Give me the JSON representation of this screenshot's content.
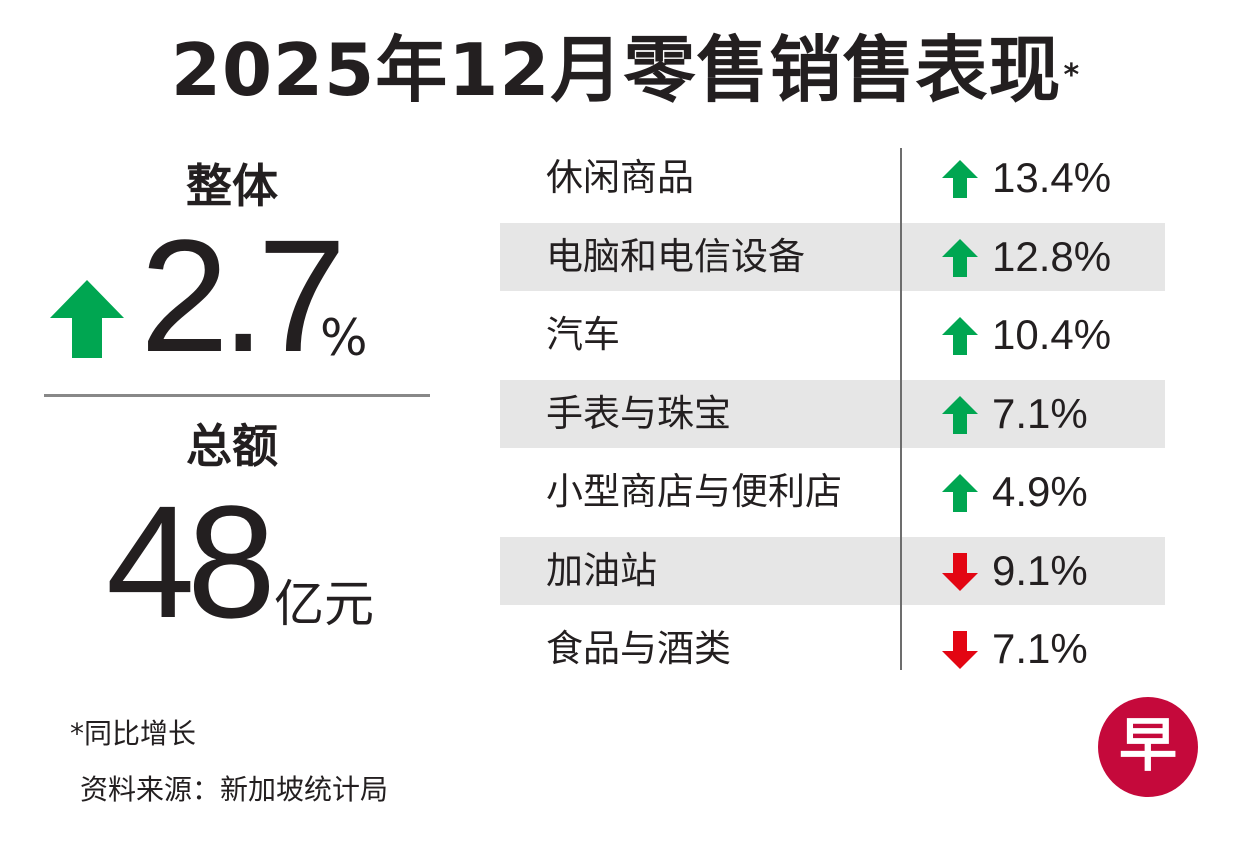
{
  "title": "2025年12月零售销售表现",
  "title_mark": "*",
  "overall": {
    "label": "整体",
    "direction": "up",
    "value": "2.7",
    "unit": "%"
  },
  "total": {
    "label": "总额",
    "value": "48",
    "unit": "亿元"
  },
  "colors": {
    "up": "#00a651",
    "down": "#e30613",
    "row_shade": "#e6e6e6",
    "logo": "#c5093b"
  },
  "chart_data": {
    "type": "table",
    "title": "2025年12月零售销售表现",
    "columns": [
      "category",
      "change"
    ],
    "rows": [
      {
        "category": "休闲商品",
        "direction": "up",
        "value": 13.4,
        "label": "13.4%"
      },
      {
        "category": "电脑和电信设备",
        "direction": "up",
        "value": 12.8,
        "label": "12.8%"
      },
      {
        "category": "汽车",
        "direction": "up",
        "value": 10.4,
        "label": "10.4%"
      },
      {
        "category": "手表与珠宝",
        "direction": "up",
        "value": 7.1,
        "label": "7.1%"
      },
      {
        "category": "小型商店与便利店",
        "direction": "up",
        "value": 4.9,
        "label": "4.9%"
      },
      {
        "category": "加油站",
        "direction": "down",
        "value": -9.1,
        "label": "9.1%"
      },
      {
        "category": "食品与酒类",
        "direction": "down",
        "value": -7.1,
        "label": "7.1%"
      }
    ]
  },
  "footnotes": {
    "yoy": "*同比增长",
    "source": "资料来源：新加坡统计局"
  },
  "logo": {
    "icon": "zaobao-logo-icon",
    "text": "早"
  }
}
